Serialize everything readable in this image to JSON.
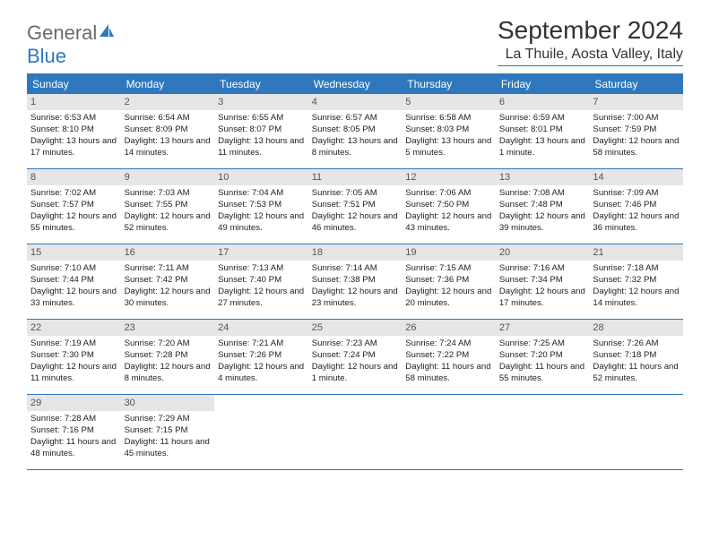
{
  "logo": {
    "word1": "General",
    "word2": "Blue"
  },
  "title": "September 2024",
  "location": "La Thuile, Aosta Valley, Italy",
  "colors": {
    "accent": "#2f78bd",
    "day_bg": "#e6e6e6",
    "text": "#222222",
    "logo_gray": "#6b6b6b"
  },
  "day_headers": [
    "Sunday",
    "Monday",
    "Tuesday",
    "Wednesday",
    "Thursday",
    "Friday",
    "Saturday"
  ],
  "days": [
    {
      "n": 1,
      "sunrise": "6:53 AM",
      "sunset": "8:10 PM",
      "daylight": "13 hours and 17 minutes."
    },
    {
      "n": 2,
      "sunrise": "6:54 AM",
      "sunset": "8:09 PM",
      "daylight": "13 hours and 14 minutes."
    },
    {
      "n": 3,
      "sunrise": "6:55 AM",
      "sunset": "8:07 PM",
      "daylight": "13 hours and 11 minutes."
    },
    {
      "n": 4,
      "sunrise": "6:57 AM",
      "sunset": "8:05 PM",
      "daylight": "13 hours and 8 minutes."
    },
    {
      "n": 5,
      "sunrise": "6:58 AM",
      "sunset": "8:03 PM",
      "daylight": "13 hours and 5 minutes."
    },
    {
      "n": 6,
      "sunrise": "6:59 AM",
      "sunset": "8:01 PM",
      "daylight": "13 hours and 1 minute."
    },
    {
      "n": 7,
      "sunrise": "7:00 AM",
      "sunset": "7:59 PM",
      "daylight": "12 hours and 58 minutes."
    },
    {
      "n": 8,
      "sunrise": "7:02 AM",
      "sunset": "7:57 PM",
      "daylight": "12 hours and 55 minutes."
    },
    {
      "n": 9,
      "sunrise": "7:03 AM",
      "sunset": "7:55 PM",
      "daylight": "12 hours and 52 minutes."
    },
    {
      "n": 10,
      "sunrise": "7:04 AM",
      "sunset": "7:53 PM",
      "daylight": "12 hours and 49 minutes."
    },
    {
      "n": 11,
      "sunrise": "7:05 AM",
      "sunset": "7:51 PM",
      "daylight": "12 hours and 46 minutes."
    },
    {
      "n": 12,
      "sunrise": "7:06 AM",
      "sunset": "7:50 PM",
      "daylight": "12 hours and 43 minutes."
    },
    {
      "n": 13,
      "sunrise": "7:08 AM",
      "sunset": "7:48 PM",
      "daylight": "12 hours and 39 minutes."
    },
    {
      "n": 14,
      "sunrise": "7:09 AM",
      "sunset": "7:46 PM",
      "daylight": "12 hours and 36 minutes."
    },
    {
      "n": 15,
      "sunrise": "7:10 AM",
      "sunset": "7:44 PM",
      "daylight": "12 hours and 33 minutes."
    },
    {
      "n": 16,
      "sunrise": "7:11 AM",
      "sunset": "7:42 PM",
      "daylight": "12 hours and 30 minutes."
    },
    {
      "n": 17,
      "sunrise": "7:13 AM",
      "sunset": "7:40 PM",
      "daylight": "12 hours and 27 minutes."
    },
    {
      "n": 18,
      "sunrise": "7:14 AM",
      "sunset": "7:38 PM",
      "daylight": "12 hours and 23 minutes."
    },
    {
      "n": 19,
      "sunrise": "7:15 AM",
      "sunset": "7:36 PM",
      "daylight": "12 hours and 20 minutes."
    },
    {
      "n": 20,
      "sunrise": "7:16 AM",
      "sunset": "7:34 PM",
      "daylight": "12 hours and 17 minutes."
    },
    {
      "n": 21,
      "sunrise": "7:18 AM",
      "sunset": "7:32 PM",
      "daylight": "12 hours and 14 minutes."
    },
    {
      "n": 22,
      "sunrise": "7:19 AM",
      "sunset": "7:30 PM",
      "daylight": "12 hours and 11 minutes."
    },
    {
      "n": 23,
      "sunrise": "7:20 AM",
      "sunset": "7:28 PM",
      "daylight": "12 hours and 8 minutes."
    },
    {
      "n": 24,
      "sunrise": "7:21 AM",
      "sunset": "7:26 PM",
      "daylight": "12 hours and 4 minutes."
    },
    {
      "n": 25,
      "sunrise": "7:23 AM",
      "sunset": "7:24 PM",
      "daylight": "12 hours and 1 minute."
    },
    {
      "n": 26,
      "sunrise": "7:24 AM",
      "sunset": "7:22 PM",
      "daylight": "11 hours and 58 minutes."
    },
    {
      "n": 27,
      "sunrise": "7:25 AM",
      "sunset": "7:20 PM",
      "daylight": "11 hours and 55 minutes."
    },
    {
      "n": 28,
      "sunrise": "7:26 AM",
      "sunset": "7:18 PM",
      "daylight": "11 hours and 52 minutes."
    },
    {
      "n": 29,
      "sunrise": "7:28 AM",
      "sunset": "7:16 PM",
      "daylight": "11 hours and 48 minutes."
    },
    {
      "n": 30,
      "sunrise": "7:29 AM",
      "sunset": "7:15 PM",
      "daylight": "11 hours and 45 minutes."
    }
  ],
  "labels": {
    "sunrise": "Sunrise:",
    "sunset": "Sunset:",
    "daylight": "Daylight:"
  },
  "grid": {
    "first_weekday_index": 0,
    "total_cells": 35
  }
}
